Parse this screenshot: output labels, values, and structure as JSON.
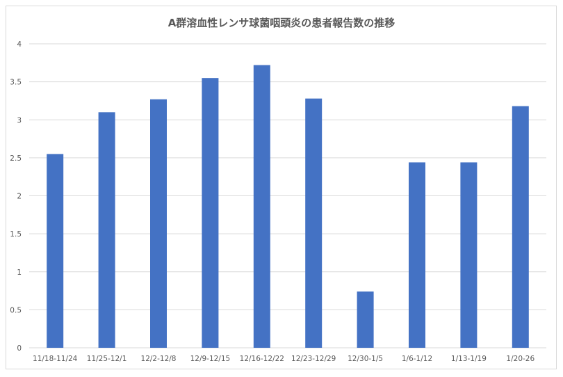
{
  "chart_data": {
    "type": "bar",
    "title": "A群溶血性レンサ球菌咽頭炎の患者報告数の推移",
    "xlabel": "",
    "ylabel": "",
    "ylim": [
      0,
      4
    ],
    "yticks": [
      "0",
      "0.5",
      "1",
      "1.5",
      "2",
      "2.5",
      "3",
      "3.5",
      "4"
    ],
    "grid": true,
    "legend": "none",
    "bar_color": "#4472c4",
    "grid_color": "#d9d9d9",
    "categories": [
      "11/18-11/24",
      "11/25-12/1",
      "12/2-12/8",
      "12/9-12/15",
      "12/16-12/22",
      "12/23-12/29",
      "12/30-1/5",
      "1/6-1/12",
      "1/13-1/19",
      "1/20-26"
    ],
    "values": [
      2.55,
      3.1,
      3.27,
      3.55,
      3.72,
      3.28,
      0.74,
      2.44,
      2.44,
      3.18
    ]
  }
}
